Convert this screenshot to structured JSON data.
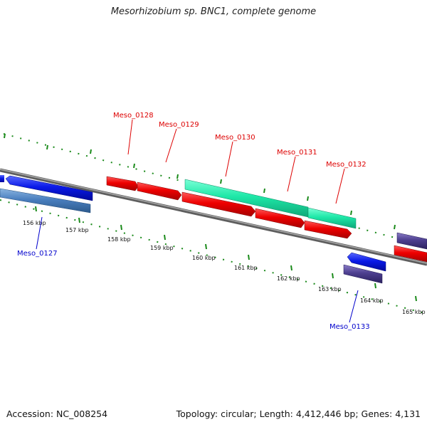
{
  "title": "Mesorhizobium sp. BNC1, complete genome",
  "footer": {
    "accession": "Accession: NC_008254",
    "summary": "Topology: circular; Length: 4,412,446 bp; Genes: 4,131"
  },
  "ruler": {
    "labels": [
      "156 kbp",
      "157 kbp",
      "158 kbp",
      "159 kbp",
      "160 kbp",
      "161 kbp",
      "162 kbp",
      "163 kbp",
      "164 kbp",
      "165 kbp"
    ]
  },
  "genes": [
    {
      "name": "Meso_0127",
      "color": "#0000cc"
    },
    {
      "name": "Meso_0128",
      "color": "#dd0000"
    },
    {
      "name": "Meso_0129",
      "color": "#dd0000"
    },
    {
      "name": "Meso_0130",
      "color": "#dd0000"
    },
    {
      "name": "Meso_0131",
      "color": "#dd0000"
    },
    {
      "name": "Meso_0132",
      "color": "#dd0000"
    },
    {
      "name": "Meso_0133",
      "color": "#0000cc"
    }
  ],
  "colors": {
    "backbone": "#8c8c8c",
    "tick": "#1a8a1a",
    "forward_cds": "#ee0000",
    "reverse_cds": "#0a1ae8",
    "steelblue_feature": "#4a7fbf",
    "mint_feature": "#1ee8a8",
    "slate_feature": "#4d3f8f"
  }
}
